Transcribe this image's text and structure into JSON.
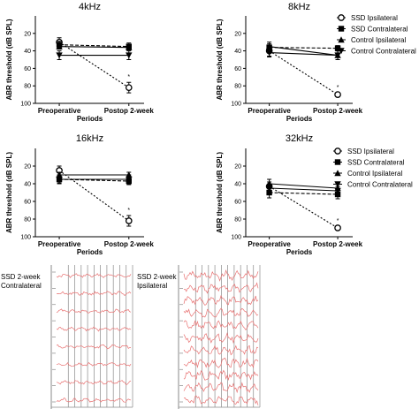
{
  "chart_data": [
    {
      "type": "line",
      "title": "4kHz",
      "xlabel": "Periods",
      "ylabel": "ABR threshold (dB SPL)",
      "categories": [
        "Preoperative",
        "Postop 2-week"
      ],
      "ylim": [
        0,
        100
      ],
      "y_inverted": true,
      "yticks": [
        20,
        40,
        60,
        80,
        100
      ],
      "series": [
        {
          "name": "SSD Ipsilateral",
          "values": [
            30,
            82
          ],
          "err": [
            5,
            6
          ]
        },
        {
          "name": "SSD Contralateral",
          "values": [
            33,
            35
          ],
          "err": [
            4,
            4
          ]
        },
        {
          "name": "Control Ipsilateral",
          "values": [
            35,
            36
          ],
          "err": [
            3,
            3
          ]
        },
        {
          "name": "Control Contralateral",
          "values": [
            45,
            45
          ],
          "err": [
            5,
            5
          ]
        }
      ],
      "annotations": [
        {
          "text": "*",
          "at": "Postop 2-week"
        }
      ]
    },
    {
      "type": "line",
      "title": "8kHz",
      "xlabel": "Periods",
      "ylabel": "ABR threshold (dB SPL)",
      "categories": [
        "Preoperative",
        "Postop 2-week"
      ],
      "ylim": [
        0,
        100
      ],
      "y_inverted": true,
      "yticks": [
        20,
        40,
        60,
        80,
        100
      ],
      "series": [
        {
          "name": "SSD Ipsilateral",
          "values": [
            40,
            90
          ],
          "err": [
            6,
            2
          ]
        },
        {
          "name": "SSD Contralateral",
          "values": [
            36,
            37
          ],
          "err": [
            4,
            3
          ]
        },
        {
          "name": "Control Ipsilateral",
          "values": [
            35,
            45
          ],
          "err": [
            5,
            5
          ]
        },
        {
          "name": "Control Contralateral",
          "values": [
            42,
            45
          ],
          "err": [
            5,
            5
          ]
        }
      ],
      "annotations": [
        {
          "text": "*",
          "at": "Postop 2-week"
        }
      ]
    },
    {
      "type": "line",
      "title": "16kHz",
      "xlabel": "Periods",
      "ylabel": "ABR threshold (dB SPL)",
      "categories": [
        "Preoperative",
        "Postop 2-week"
      ],
      "ylim": [
        0,
        100
      ],
      "y_inverted": true,
      "yticks": [
        20,
        40,
        60,
        80,
        100
      ],
      "series": [
        {
          "name": "SSD Ipsilateral",
          "values": [
            25,
            82
          ],
          "err": [
            5,
            6
          ]
        },
        {
          "name": "SSD Contralateral",
          "values": [
            35,
            37
          ],
          "err": [
            4,
            4
          ]
        },
        {
          "name": "Control Ipsilateral",
          "values": [
            30,
            30
          ],
          "err": [
            3,
            3
          ]
        },
        {
          "name": "Control Contralateral",
          "values": [
            35,
            35
          ],
          "err": [
            5,
            5
          ]
        }
      ],
      "annotations": [
        {
          "text": "*",
          "at": "Postop 2-week"
        }
      ]
    },
    {
      "type": "line",
      "title": "32kHz",
      "xlabel": "Periods",
      "ylabel": "ABR threshold (dB SPL)",
      "categories": [
        "Preoperative",
        "Postop 2-week"
      ],
      "ylim": [
        0,
        100
      ],
      "y_inverted": true,
      "yticks": [
        20,
        40,
        60,
        80,
        100
      ],
      "series": [
        {
          "name": "SSD Ipsilateral",
          "values": [
            43,
            90
          ],
          "err": [
            5,
            2
          ]
        },
        {
          "name": "SSD Contralateral",
          "values": [
            50,
            52
          ],
          "err": [
            6,
            5
          ]
        },
        {
          "name": "Control Ipsilateral",
          "values": [
            40,
            45
          ],
          "err": [
            5,
            5
          ]
        },
        {
          "name": "Control Contralateral",
          "values": [
            45,
            48
          ],
          "err": [
            5,
            5
          ]
        }
      ],
      "annotations": [
        {
          "text": "*",
          "at": "Postop 2-week"
        }
      ]
    }
  ],
  "legend": [
    "SSD Ipsilateral",
    "SSD Contralateral",
    "Control Ipsilateral",
    "Control Contralateral"
  ],
  "ecg_panels": [
    {
      "label_line1": "SSD 2-week",
      "label_line2": "Contralateral"
    },
    {
      "label_line1": "SSD 2-week",
      "label_line2": "Ipsilateral"
    }
  ],
  "colors": {
    "axis": "#000000",
    "trace": "#e87070",
    "grid": "#8a8a8a"
  }
}
